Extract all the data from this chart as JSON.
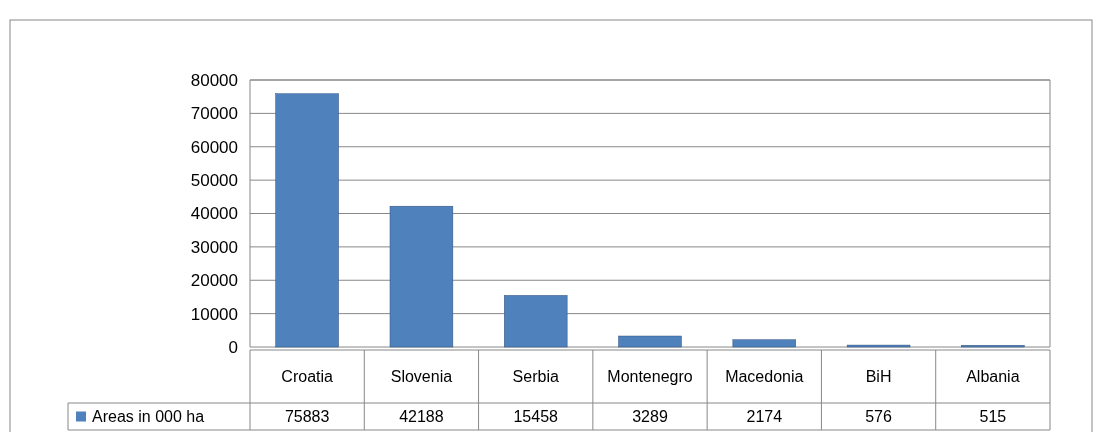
{
  "chart_data": {
    "type": "bar",
    "categories": [
      "Croatia",
      "Slovenia",
      "Serbia",
      "Montenegro",
      "Macedonia",
      "BiH",
      "Albania"
    ],
    "series": [
      {
        "name": "Areas in 000 ha",
        "color": "#4f81bd",
        "values": [
          75883,
          42188,
          15458,
          3289,
          2174,
          576,
          515
        ]
      }
    ],
    "ylim": [
      0,
      80000
    ],
    "yticks": [
      0,
      10000,
      20000,
      30000,
      40000,
      50000,
      60000,
      70000,
      80000
    ],
    "grid": "y",
    "legend": "bottom",
    "data_labels": true
  }
}
